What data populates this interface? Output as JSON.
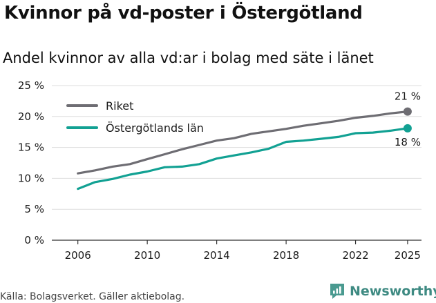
{
  "header": {
    "title": "Kvinnor på vd-poster i Östergötland",
    "subtitle": "Andel kvinnor av alla vd:ar i bolag med säte i länet"
  },
  "footer": {
    "source": "Källa: Bolagsverket. Gäller aktiebolag.",
    "brand": "Newsworthy"
  },
  "colors": {
    "riket": "#6e6d73",
    "ostergotland": "#12a193",
    "grid": "#dddddd",
    "axis": "#333333",
    "brand": "#3e8a82"
  },
  "chart_data": {
    "type": "line",
    "title": "Kvinnor på vd-poster i Östergötland",
    "subtitle": "Andel kvinnor av alla vd:ar i bolag med säte i länet",
    "xlabel": "",
    "ylabel": "",
    "x": [
      2006,
      2007,
      2008,
      2009,
      2010,
      2011,
      2012,
      2013,
      2014,
      2015,
      2016,
      2017,
      2018,
      2019,
      2020,
      2021,
      2022,
      2023,
      2024,
      2025
    ],
    "series": [
      {
        "name": "Riket",
        "color": "#6e6d73",
        "values": [
          10.8,
          11.3,
          11.9,
          12.3,
          13.1,
          13.9,
          14.7,
          15.4,
          16.1,
          16.5,
          17.2,
          17.6,
          18.0,
          18.5,
          18.9,
          19.3,
          19.8,
          20.1,
          20.5,
          20.8
        ],
        "end_label": "21 %"
      },
      {
        "name": "Östergötlands län",
        "color": "#12a193",
        "values": [
          8.3,
          9.4,
          9.9,
          10.6,
          11.1,
          11.8,
          11.9,
          12.3,
          13.2,
          13.7,
          14.2,
          14.8,
          15.9,
          16.1,
          16.4,
          16.7,
          17.3,
          17.4,
          17.7,
          18.1
        ],
        "end_label": "18 %"
      }
    ],
    "ylim": [
      0,
      25
    ],
    "yticks": [
      0,
      5,
      10,
      15,
      20,
      25
    ],
    "ytick_labels": [
      "0 %",
      "5 %",
      "10 %",
      "15 %",
      "20 %",
      "25 %"
    ],
    "xticks": [
      2006,
      2010,
      2014,
      2018,
      2022,
      2025
    ],
    "xtick_labels": [
      "2006",
      "2010",
      "2014",
      "2018",
      "2022",
      "2025"
    ],
    "grid": true,
    "legend_position": "top-left"
  }
}
